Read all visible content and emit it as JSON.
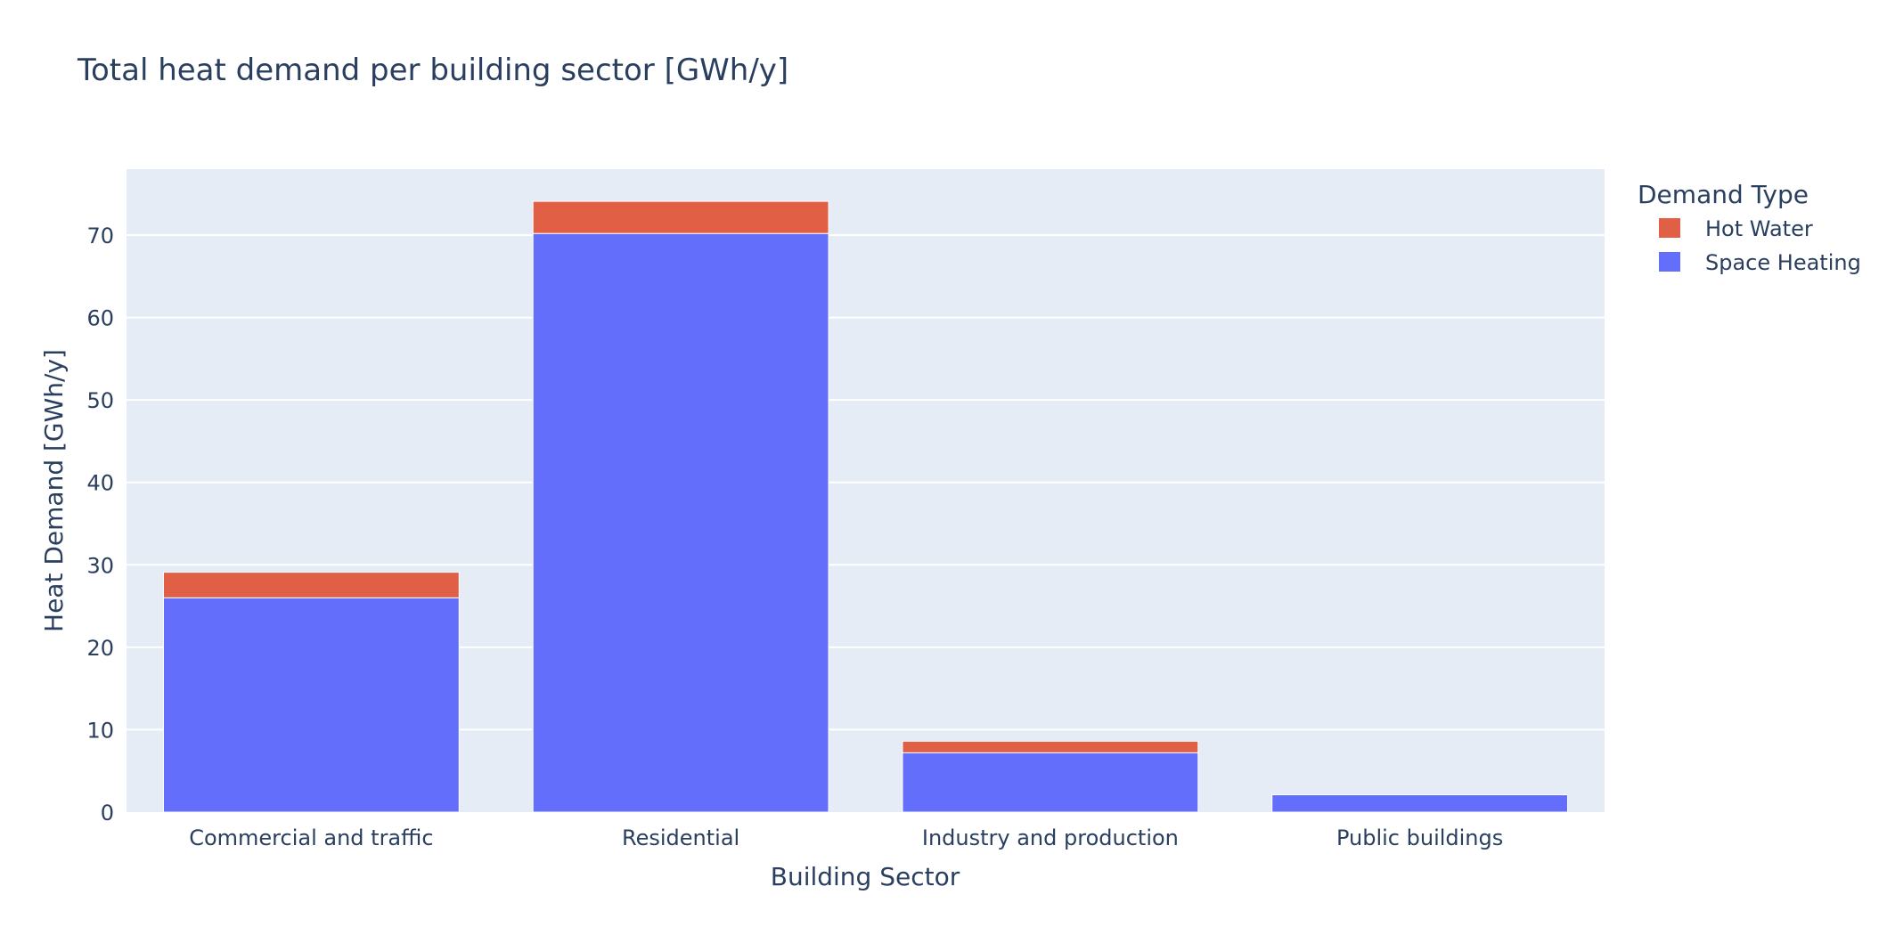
{
  "chart_data": {
    "type": "bar",
    "barmode": "stack",
    "title": "Total heat demand per building sector [GWh/y]",
    "xlabel": "Building Sector",
    "ylabel": "Heat Demand [GWh/y]",
    "categories": [
      "Commercial and traffic",
      "Residential",
      "Industry and production",
      "Public buildings"
    ],
    "series": [
      {
        "name": "Space Heating",
        "color": "#636efa",
        "values": [
          26.0,
          70.2,
          7.2,
          2.1
        ]
      },
      {
        "name": "Hot Water",
        "color": "#e05f45",
        "values": [
          3.1,
          3.9,
          1.4,
          0.0
        ]
      }
    ],
    "ylim": [
      0,
      78
    ],
    "yticks": [
      0,
      10,
      20,
      30,
      40,
      50,
      60,
      70
    ],
    "grid": true,
    "plot_bgcolor": "#e5ecf6",
    "legend": {
      "title": "Demand Type",
      "placement": "top-right",
      "order": [
        "Hot Water",
        "Space Heating"
      ]
    }
  }
}
